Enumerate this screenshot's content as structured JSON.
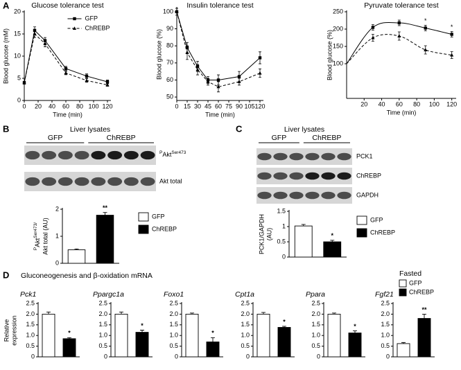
{
  "panels": [
    "A",
    "B",
    "C",
    "D"
  ],
  "chart_data": [
    {
      "type": "line",
      "title": "Glucose tolerance test",
      "xlabel": "Time (min)",
      "ylabel": "Blood glucose (mM)",
      "x": [
        0,
        15,
        30,
        60,
        90,
        120
      ],
      "xlim": [
        0,
        125
      ],
      "xticks": [
        0,
        20,
        40,
        60,
        80,
        100,
        120
      ],
      "ylim": [
        0,
        20
      ],
      "yticks": [
        0,
        5,
        10,
        15,
        20
      ],
      "legend": "top-right",
      "series": [
        {
          "name": "GFP",
          "color": "#000000",
          "line_style": "solid",
          "marker": "square",
          "values": [
            4,
            15.8,
            13.5,
            7.2,
            5.5,
            4.2
          ],
          "errors": [
            0.3,
            0.8,
            0.7,
            0.5,
            0.5,
            0.4
          ]
        },
        {
          "name": "ChREBP",
          "color": "#000000",
          "line_style": "dashed",
          "marker": "triangle",
          "values": [
            4,
            15,
            12.8,
            6.2,
            4.5,
            3.5
          ],
          "errors": [
            0.3,
            0.8,
            0.7,
            0.4,
            0.4,
            0.3
          ]
        }
      ]
    },
    {
      "type": "line",
      "title": "Insulin tolerance test",
      "xlabel": "Time (min)",
      "ylabel": "Blood glucose (%)",
      "x": [
        0,
        15,
        30,
        45,
        60,
        90,
        120
      ],
      "xlim": [
        0,
        125
      ],
      "xticks": [
        0,
        15,
        30,
        45,
        60,
        75,
        90,
        105,
        120
      ],
      "ylim": [
        48,
        102
      ],
      "yticks": [
        50,
        60,
        70,
        80,
        90,
        100
      ],
      "series": [
        {
          "name": "GFP",
          "color": "#000000",
          "line_style": "solid",
          "marker": "square",
          "values": [
            100,
            79,
            68,
            60,
            60,
            62,
            73
          ],
          "errors": [
            2,
            3,
            3,
            2,
            3,
            3,
            3.5
          ]
        },
        {
          "name": "ChREBP",
          "color": "#000000",
          "line_style": "dashed",
          "marker": "triangle",
          "values": [
            100,
            76,
            66,
            59,
            56,
            59,
            64
          ],
          "errors": [
            2,
            4,
            3,
            2,
            3,
            2,
            2.5
          ]
        }
      ]
    },
    {
      "type": "line",
      "title": "Pyruvate tolerance test",
      "xlabel": "Time (min)",
      "ylabel": "Blood glucose (%)",
      "smooth": true,
      "x": [
        0,
        30,
        60,
        90,
        120
      ],
      "xlim": [
        0,
        125
      ],
      "xticks": [
        20,
        40,
        60,
        80,
        100,
        120
      ],
      "ylim": [
        0,
        250
      ],
      "yticks": [
        100,
        150,
        200,
        250
      ],
      "significance": [
        null,
        null,
        null,
        "*",
        "*"
      ],
      "series": [
        {
          "name": "GFP",
          "color": "#000000",
          "line_style": "solid",
          "marker": "square",
          "values": [
            100,
            205,
            218,
            203,
            185
          ],
          "errors": [
            null,
            8,
            8,
            8,
            8
          ]
        },
        {
          "name": "ChREBP",
          "color": "#000000",
          "line_style": "dashed",
          "marker": "triangle",
          "values": [
            100,
            175,
            180,
            140,
            125
          ],
          "errors": [
            null,
            10,
            12,
            12,
            10
          ]
        }
      ]
    },
    {
      "type": "bar",
      "ylabel": [
        [
          "P",
          "Akt",
          "Ser473/"
        ],
        "Akt total (AU)"
      ],
      "categories": [
        "GFP",
        "ChREBP"
      ],
      "colors": [
        "#ffffff",
        "#000000"
      ],
      "values": [
        0.5,
        1.78
      ],
      "errors": [
        0.03,
        0.1
      ],
      "significance": [
        null,
        "**"
      ],
      "ylim": [
        0,
        2
      ],
      "yticks": [
        0,
        1,
        2
      ]
    },
    {
      "type": "bar",
      "ylabel": [
        "PCK1/GAPDH",
        "(AU)"
      ],
      "categories": [
        "GFP",
        "ChREBP"
      ],
      "colors": [
        "#ffffff",
        "#000000"
      ],
      "values": [
        1.02,
        0.5
      ],
      "errors": [
        0.05,
        0.05
      ],
      "significance": [
        null,
        "*"
      ],
      "ylim": [
        0,
        1.5
      ],
      "yticks": [
        0,
        0.5,
        1,
        1.5
      ]
    },
    {
      "type": "bar",
      "title": "Pck1",
      "colors": [
        "#ffffff",
        "#000000"
      ],
      "values": [
        2.0,
        0.85
      ],
      "errors": [
        0.1,
        0.05
      ],
      "significance": [
        null,
        "*"
      ],
      "ylim": [
        0,
        2.5
      ],
      "yticks": [
        0,
        0.5,
        {
          "value": 1,
          "label": "1.0"
        },
        1.5,
        {
          "value": 2,
          "label": "2.0"
        },
        2.5
      ]
    },
    {
      "type": "bar",
      "title": "Ppargc1a",
      "colors": [
        "#ffffff",
        "#000000"
      ],
      "values": [
        2.0,
        1.15
      ],
      "errors": [
        0.1,
        0.1
      ],
      "significance": [
        null,
        "*"
      ],
      "ylim": [
        0,
        2.5
      ],
      "yticks": [
        0,
        0.5,
        {
          "value": 1,
          "label": "1.0"
        },
        1.5,
        {
          "value": 2,
          "label": "2.0"
        },
        2.5
      ]
    },
    {
      "type": "bar",
      "title": "Foxo1",
      "colors": [
        "#ffffff",
        "#000000"
      ],
      "values": [
        2.0,
        0.7
      ],
      "errors": [
        0.05,
        0.2
      ],
      "significance": [
        null,
        "*"
      ],
      "ylim": [
        0,
        2.5
      ],
      "yticks": [
        0,
        0.5,
        {
          "value": 1,
          "label": "1.0"
        },
        1.5,
        {
          "value": 2,
          "label": "2.0"
        },
        2.5
      ]
    },
    {
      "type": "bar",
      "title": "Cpt1a",
      "colors": [
        "#ffffff",
        "#000000"
      ],
      "values": [
        2.0,
        1.38
      ],
      "errors": [
        0.08,
        0.05
      ],
      "significance": [
        null,
        "*"
      ],
      "ylim": [
        0,
        2.5
      ],
      "yticks": [
        0,
        0.5,
        {
          "value": 1,
          "label": "1.0"
        },
        1.5,
        {
          "value": 2,
          "label": "2.0"
        },
        2.5
      ]
    },
    {
      "type": "bar",
      "title": "Ppara",
      "colors": [
        "#ffffff",
        "#000000"
      ],
      "values": [
        2.0,
        1.12
      ],
      "errors": [
        0.05,
        0.1
      ],
      "significance": [
        null,
        "*"
      ],
      "ylim": [
        0,
        2.5
      ],
      "yticks": [
        0,
        0.5,
        {
          "value": 1,
          "label": "1.0"
        },
        1.5,
        {
          "value": 2,
          "label": "2.0"
        },
        2.5
      ]
    },
    {
      "type": "bar",
      "title": "Fgf21",
      "colors": [
        "#ffffff",
        "#000000"
      ],
      "values": [
        0.62,
        1.8
      ],
      "errors": [
        0.05,
        0.2
      ],
      "significance": [
        null,
        "**"
      ],
      "ylim": [
        0,
        2.5
      ],
      "yticks": [
        0,
        0.5,
        {
          "value": 1,
          "label": "1.0"
        },
        1.5,
        {
          "value": 2,
          "label": "2.0"
        },
        2.5
      ]
    }
  ],
  "blots": {
    "b": {
      "header": "Liver lysates",
      "groups": [
        "GFP",
        "ChREBP"
      ],
      "rows": [
        [
          "P",
          "Akt",
          "Ser473"
        ],
        "Akt total"
      ]
    },
    "c": {
      "header": "Liver lysates",
      "groups": [
        "GFP",
        "ChREBP"
      ],
      "rows": [
        "PCK1",
        "ChREBP",
        "GAPDH"
      ]
    }
  },
  "expression": {
    "title": "Gluconeogenesis and β-oxidation mRNA",
    "ylabel": [
      "Relative",
      "expression"
    ],
    "legend_title": "Fasted",
    "legend": [
      "GFP",
      "ChREBP"
    ]
  }
}
